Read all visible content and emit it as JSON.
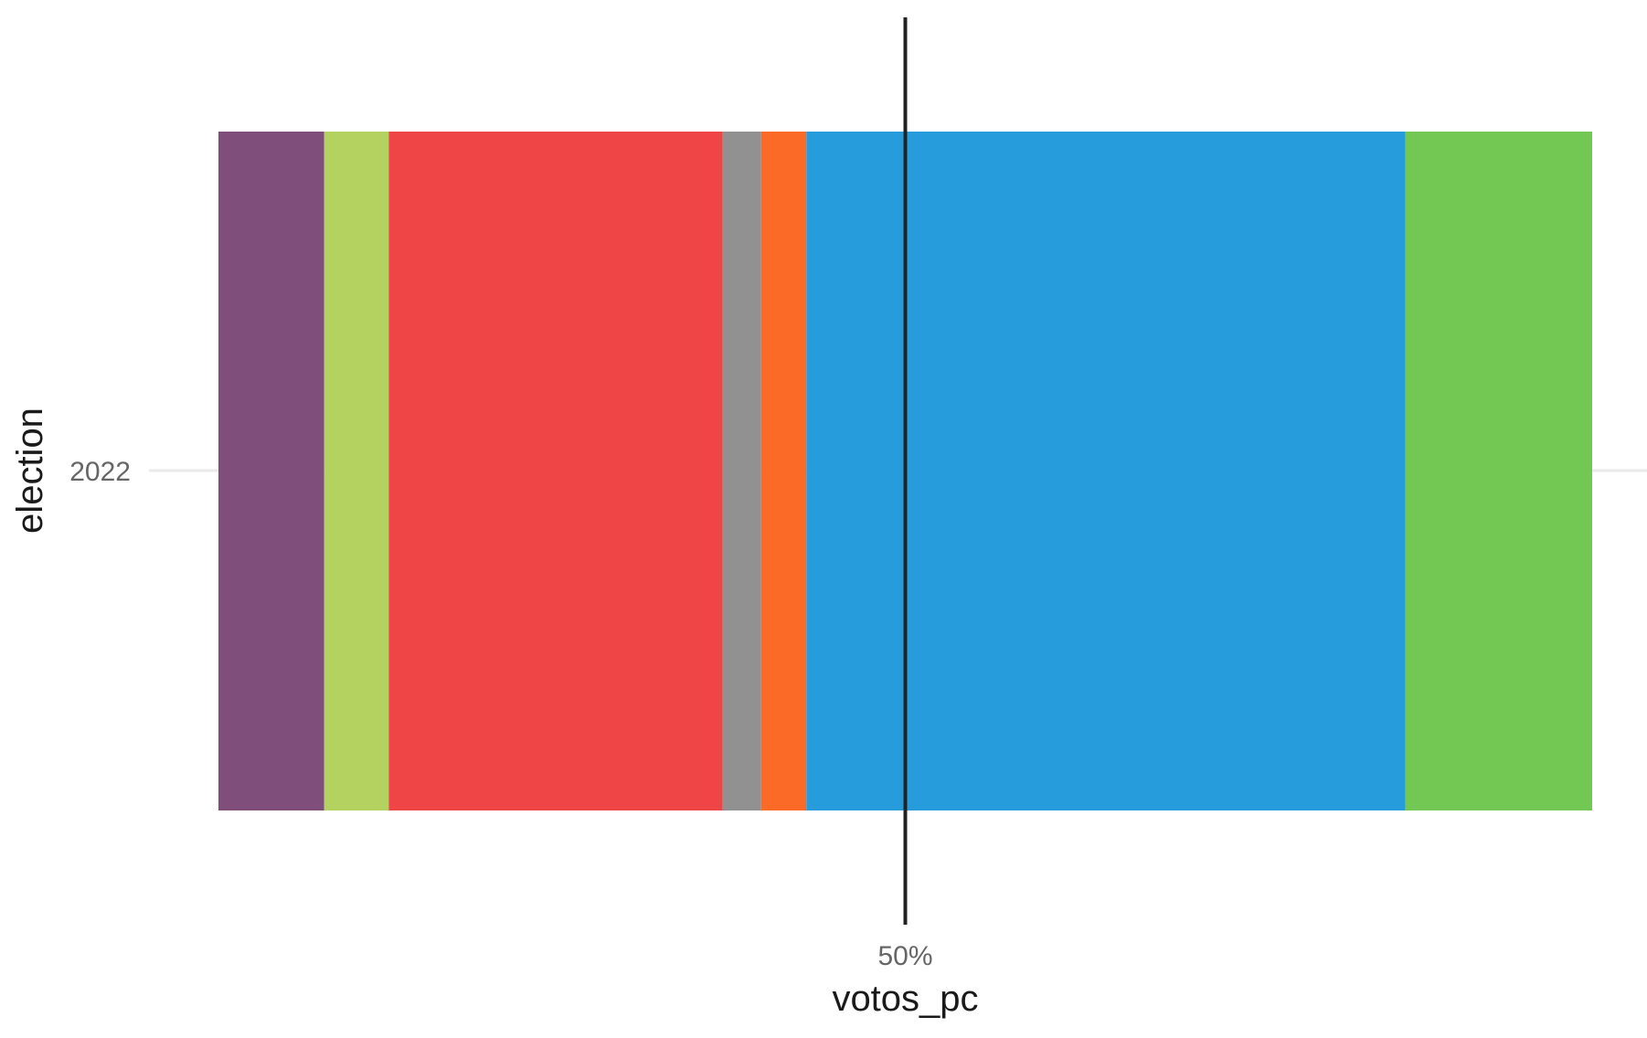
{
  "chart_data": {
    "type": "bar",
    "orientation": "horizontal",
    "stacked": true,
    "categories": [
      "2022"
    ],
    "xlabel": "votos_pc",
    "ylabel": "election",
    "xticks": [
      "50%"
    ],
    "xlim": [
      0,
      100
    ],
    "reference_line": 50,
    "grid": "horizontal major only",
    "legend": "none",
    "segments": [
      {
        "value": 7.7,
        "color": "#7F4E7B"
      },
      {
        "value": 4.7,
        "color": "#B3D25F"
      },
      {
        "value": 24.3,
        "color": "#EF4546"
      },
      {
        "value": 2.8,
        "color": "#919191"
      },
      {
        "value": 3.3,
        "color": "#FC6A28"
      },
      {
        "value": 43.6,
        "color": "#279CDC"
      },
      {
        "value": 13.6,
        "color": "#72C853"
      }
    ]
  }
}
